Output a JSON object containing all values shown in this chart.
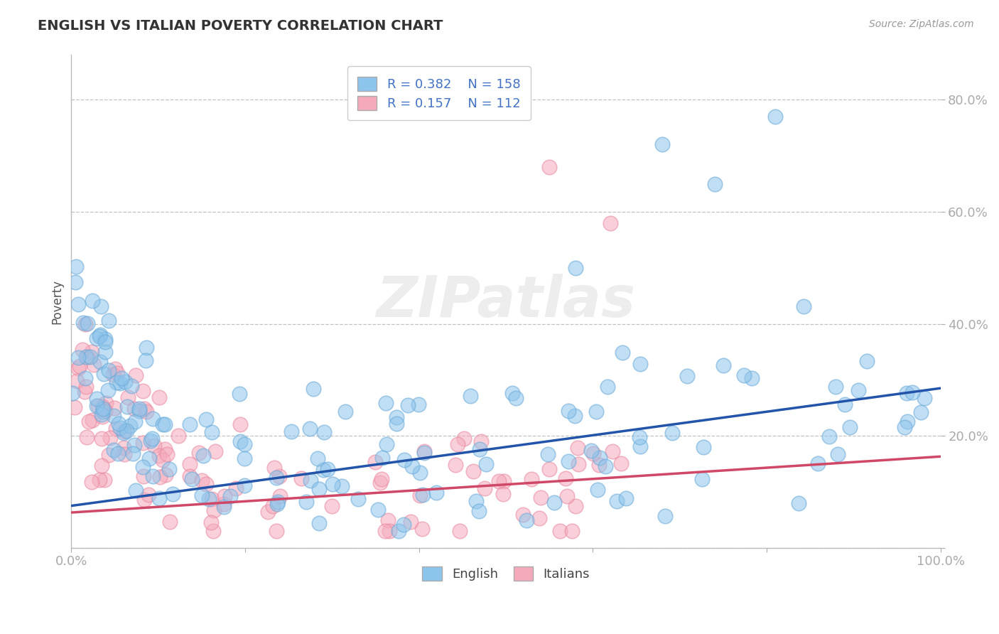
{
  "title": "ENGLISH VS ITALIAN POVERTY CORRELATION CHART",
  "source": "Source: ZipAtlas.com",
  "ylabel": "Poverty",
  "xlim": [
    0,
    1
  ],
  "ylim": [
    0,
    0.88
  ],
  "yticks": [
    0.0,
    0.2,
    0.4,
    0.6,
    0.8
  ],
  "ytick_labels": [
    "",
    "20.0%",
    "40.0%",
    "60.0%",
    "80.0%"
  ],
  "english_color": "#8DC4EC",
  "english_edge_color": "#6AAAD8",
  "italian_color": "#F5AABC",
  "italian_edge_color": "#E888A0",
  "english_line_color": "#2255AA",
  "italian_line_color": "#D04868",
  "R_english": 0.382,
  "N_english": 158,
  "R_italian": 0.157,
  "N_italian": 112,
  "title_color": "#333333",
  "label_color": "#4472C4",
  "grid_color": "#BBBBBB",
  "background_color": "#FFFFFF",
  "watermark": "ZIPatlas",
  "eng_line_x0": 0.0,
  "eng_line_y0": 0.075,
  "eng_line_x1": 1.0,
  "eng_line_y1": 0.285,
  "ita_line_x0": 0.0,
  "ita_line_y0": 0.063,
  "ita_line_x1": 1.0,
  "ita_line_y1": 0.163
}
